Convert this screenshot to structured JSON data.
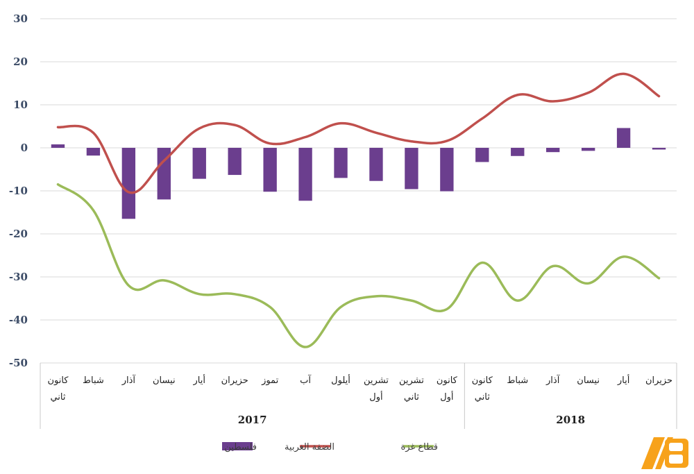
{
  "chart_data": {
    "type": "bar",
    "title": "",
    "xlabel": "",
    "ylabel": "",
    "ylim": [
      -50,
      30
    ],
    "yticks": [
      30,
      20,
      10,
      0,
      -10,
      -20,
      -30,
      -40,
      -50
    ],
    "grid": true,
    "legend_position": "bottom",
    "categories": [
      "كانون ثاني",
      "شباط",
      "آذار",
      "نيسان",
      "أيار",
      "حزيران",
      "تموز",
      "آب",
      "أيلول",
      "تشرين أول",
      "تشرين ثاني",
      "كانون أول",
      "كانون ثاني",
      "شباط",
      "آذار",
      "نيسان",
      "أيار",
      "حزيران"
    ],
    "category_lines": [
      [
        "كانون",
        "ثاني"
      ],
      [
        "شباط"
      ],
      [
        "آذار"
      ],
      [
        "نيسان"
      ],
      [
        "أيار"
      ],
      [
        "حزيران"
      ],
      [
        "تموز"
      ],
      [
        "آب"
      ],
      [
        "أيلول"
      ],
      [
        "تشرين",
        "أول"
      ],
      [
        "تشرين",
        "ثاني"
      ],
      [
        "كانون",
        "أول"
      ],
      [
        "كانون",
        "ثاني"
      ],
      [
        "شباط"
      ],
      [
        "آذار"
      ],
      [
        "نيسان"
      ],
      [
        "أيار"
      ],
      [
        "حزيران"
      ]
    ],
    "groups": [
      {
        "label": "2017",
        "count": 12
      },
      {
        "label": "2018",
        "count": 6
      }
    ],
    "series": [
      {
        "name": "فلسطين",
        "type": "bar",
        "color": "#6b3e8e",
        "values": [
          0.8,
          -1.8,
          -16.5,
          -12,
          -7.2,
          -6.3,
          -10.2,
          -12.3,
          -7,
          -7.7,
          -9.6,
          -10.1,
          -3.3,
          -1.9,
          -1,
          -0.7,
          4.6,
          -0.4
        ]
      },
      {
        "name": "الضفة الغربية",
        "type": "line",
        "color": "#c0504d",
        "values": [
          4.8,
          3.5,
          -10.3,
          -3,
          4.5,
          5.3,
          1,
          2.5,
          5.7,
          3.5,
          1.5,
          1.6,
          6.8,
          12.3,
          10.8,
          12.8,
          17.2,
          12
        ]
      },
      {
        "name": "قطاع غزة",
        "type": "line",
        "color": "#9bbb59",
        "values": [
          -8.5,
          -14.5,
          -32,
          -30.8,
          -34,
          -34,
          -37,
          -46.3,
          -37,
          -34.5,
          -35.5,
          -37.5,
          -26.7,
          -35.5,
          -27.5,
          -31.5,
          -25.3,
          -30.3
        ]
      }
    ]
  }
}
